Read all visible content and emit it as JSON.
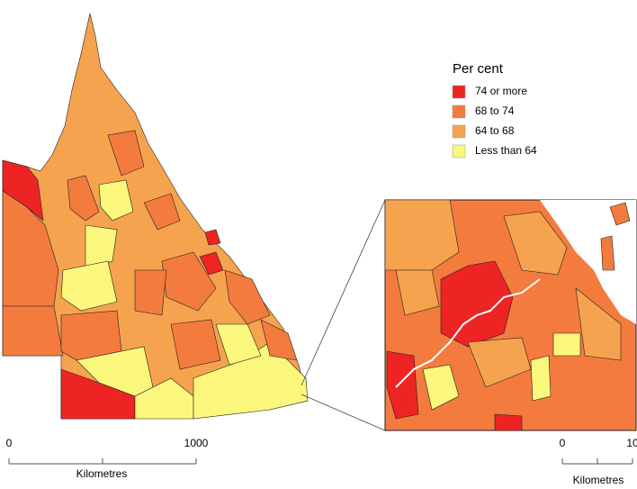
{
  "legend": {
    "title": "Per cent",
    "items": [
      {
        "label": "74 or more",
        "color": "#ee2424"
      },
      {
        "label": "68 to 74",
        "color": "#f47b3e"
      },
      {
        "label": "64 to 68",
        "color": "#f6a34f"
      },
      {
        "label": "Less than 64",
        "color": "#fbf77c"
      }
    ]
  },
  "main_scale": {
    "ticks": [
      0,
      1000
    ],
    "unit": "Kilometres"
  },
  "inset_scale": {
    "ticks": [
      0,
      10
    ],
    "unit": "Kilometres"
  }
}
